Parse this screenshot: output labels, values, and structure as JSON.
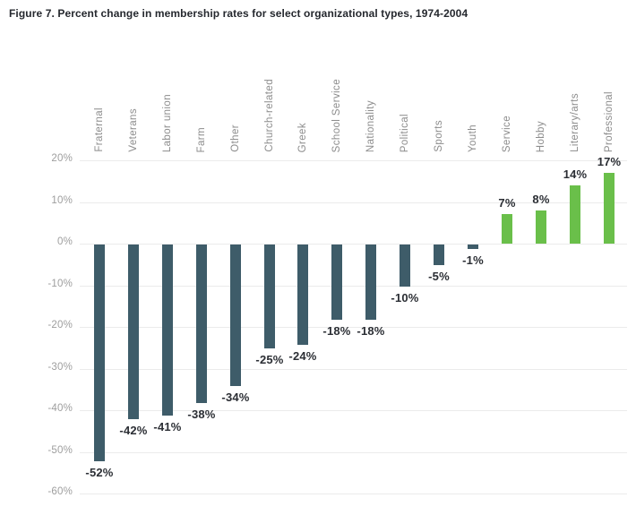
{
  "figure": {
    "title": "Figure 7. Percent change in membership rates for select organizational types, 1974-2004"
  },
  "chart_data": {
    "type": "bar",
    "title": "Figure 7. Percent change in membership rates for select organizational types, 1974-2004",
    "categories": [
      "Fraternal",
      "Veterans",
      "Labor union",
      "Farm",
      "Other",
      "Church-related",
      "Greek",
      "School Service",
      "Nationality",
      "Political",
      "Sports",
      "Youth",
      "Service",
      "Hobby",
      "Literary/arts",
      "Professional"
    ],
    "values": [
      -52,
      -42,
      -41,
      -38,
      -34,
      -25,
      -24,
      -18,
      -18,
      -10,
      -5,
      -1,
      7,
      8,
      14,
      17
    ],
    "value_labels": [
      "-52%",
      "-42%",
      "-41%",
      "-38%",
      "-34%",
      "-25%",
      "-24%",
      "-18%",
      "-18%",
      "-10%",
      "-5%",
      "-1%",
      "7%",
      "8%",
      "14%",
      "17%"
    ],
    "xlabel": "",
    "ylabel": "",
    "ylim": [
      -60,
      20
    ],
    "ytick_values": [
      20,
      10,
      0,
      -10,
      -20,
      -30,
      -40,
      -50,
      -60
    ],
    "yticks": [
      "20%",
      "10%",
      "0%",
      "-10%",
      "-20%",
      "-30%",
      "-40%",
      "-50%",
      "-60%"
    ],
    "grid": true,
    "legend_position": "none",
    "category_label_position": "top-rotated-90",
    "colors": {
      "negative_bar": "#3e5c69",
      "positive_bar": "#6abf4a",
      "gridline": "#ebebeb",
      "tick_label": "#9e9e9e",
      "category_label": "#8c8c8c",
      "value_label": "#2b2e34",
      "title": "#25282e",
      "background": "#ffffff"
    }
  }
}
